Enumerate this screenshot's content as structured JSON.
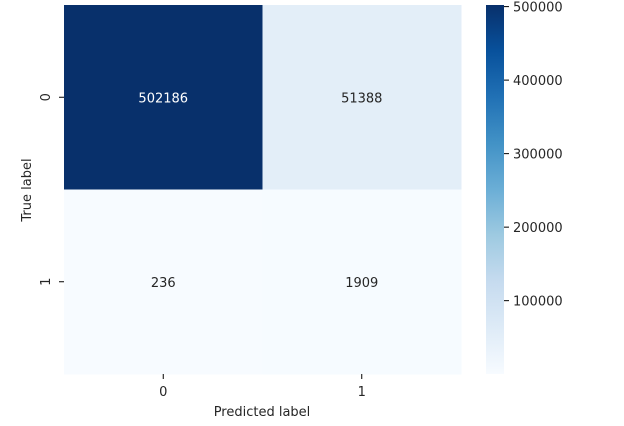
{
  "chart_data": {
    "type": "heatmap",
    "title": "",
    "xlabel": "Predicted label",
    "ylabel": "True label",
    "x_categories": [
      "0",
      "1"
    ],
    "y_categories": [
      "0",
      "1"
    ],
    "values": [
      [
        502186,
        51388
      ],
      [
        236,
        1909
      ]
    ],
    "colormap": "Blues",
    "color_low": "#f7fbff",
    "color_high": "#08306b",
    "vmin": 236,
    "vmax": 502186,
    "colorbar": {
      "ticks": [
        100000,
        200000,
        300000,
        400000,
        500000
      ],
      "tick_labels": [
        "100000",
        "200000",
        "300000",
        "400000",
        "500000"
      ]
    },
    "grid": false,
    "legend": "colorbar-right"
  }
}
